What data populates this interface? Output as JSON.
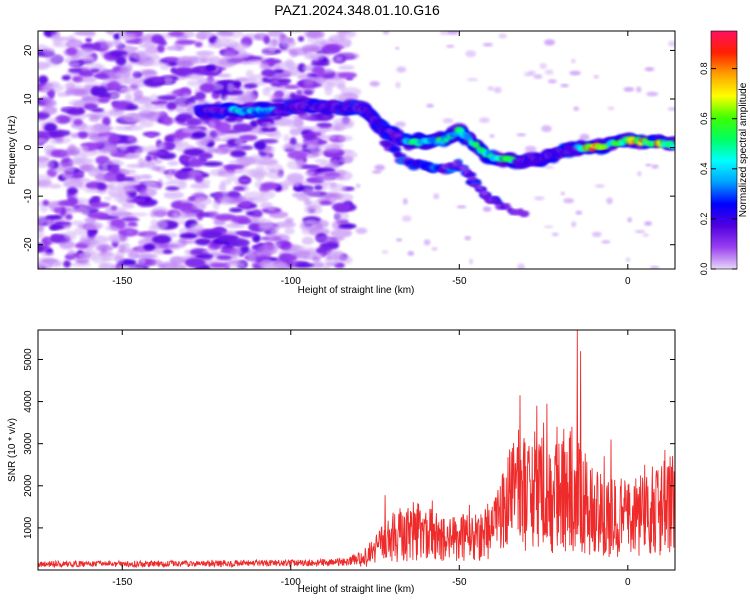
{
  "figure_title": "PAZ1.2024.348.01.10.G16",
  "chart_data": [
    {
      "type": "heatmap",
      "xlabel": "Height of straight line (km)",
      "ylabel": "Frequency (Hz)",
      "xlim": [
        -175,
        14
      ],
      "ylim": [
        -25,
        24
      ],
      "x_ticks": [
        -150,
        -100,
        -50,
        0
      ],
      "y_ticks": [
        -20,
        -10,
        0,
        10,
        20
      ],
      "colorbar": {
        "label": "Normalized spectral amplitude",
        "range": [
          0,
          0.95
        ],
        "ticks": [
          0.0,
          0.2,
          0.4,
          0.6,
          0.8
        ],
        "colormap": [
          "#e8d8f8",
          "#9a40f0",
          "#5000e0",
          "#0000ff",
          "#00a0ff",
          "#00ffff",
          "#00ff60",
          "#40ff00",
          "#ffff00",
          "#ffa000",
          "#ff2000",
          "#ff1060"
        ]
      },
      "ridge": {
        "points": [
          [
            -127,
            7.5
          ],
          [
            -115,
            7.5
          ],
          [
            -105,
            7.5
          ],
          [
            -100,
            8.5
          ],
          [
            -88,
            8.5
          ],
          [
            -78,
            8.0
          ],
          [
            -73,
            4.0
          ],
          [
            -65,
            1.0
          ],
          [
            -55,
            1.5
          ],
          [
            -50,
            3.5
          ],
          [
            -42,
            -1.5
          ],
          [
            -38,
            -2.5
          ],
          [
            -30,
            -3.0
          ],
          [
            -22,
            -1.5
          ],
          [
            -15,
            0.0
          ],
          [
            -8,
            0.0
          ],
          [
            0,
            1.5
          ],
          [
            8,
            1.0
          ],
          [
            14,
            0.5
          ]
        ],
        "peak_amplitude": 0.95
      }
    },
    {
      "type": "line",
      "xlabel": "Height of straight line (km)",
      "ylabel": "SNR (10 * v/v)",
      "xlim": [
        -175,
        14
      ],
      "ylim": [
        0,
        5700
      ],
      "x_ticks": [
        -150,
        -100,
        -50,
        0
      ],
      "y_ticks": [
        1000,
        2000,
        3000,
        4000,
        5000
      ],
      "color": "#ee2a2a",
      "envelope": [
        [
          -175,
          200
        ],
        [
          -120,
          220
        ],
        [
          -100,
          230
        ],
        [
          -85,
          260
        ],
        [
          -78,
          450
        ],
        [
          -70,
          1200
        ],
        [
          -62,
          1500
        ],
        [
          -55,
          1100
        ],
        [
          -45,
          1200
        ],
        [
          -38,
          1800
        ],
        [
          -33,
          3000
        ],
        [
          -28,
          2900
        ],
        [
          -22,
          2600
        ],
        [
          -16,
          3000
        ],
        [
          -12,
          2300
        ],
        [
          -5,
          1900
        ],
        [
          2,
          1900
        ],
        [
          8,
          2200
        ],
        [
          14,
          2400
        ]
      ],
      "spikes": [
        [
          -72,
          1780
        ],
        [
          -58,
          1650
        ],
        [
          -47,
          1550
        ],
        [
          -37,
          2300
        ],
        [
          -32,
          4150
        ],
        [
          -27,
          3900
        ],
        [
          -25,
          3500
        ],
        [
          -24,
          3950
        ],
        [
          -21,
          3400
        ],
        [
          -19,
          3350
        ],
        [
          -17,
          3200
        ],
        [
          -15,
          5700
        ],
        [
          -14,
          5200
        ],
        [
          -7,
          2700
        ],
        [
          -5,
          3100
        ],
        [
          5,
          2500
        ],
        [
          11,
          2850
        ]
      ]
    }
  ]
}
